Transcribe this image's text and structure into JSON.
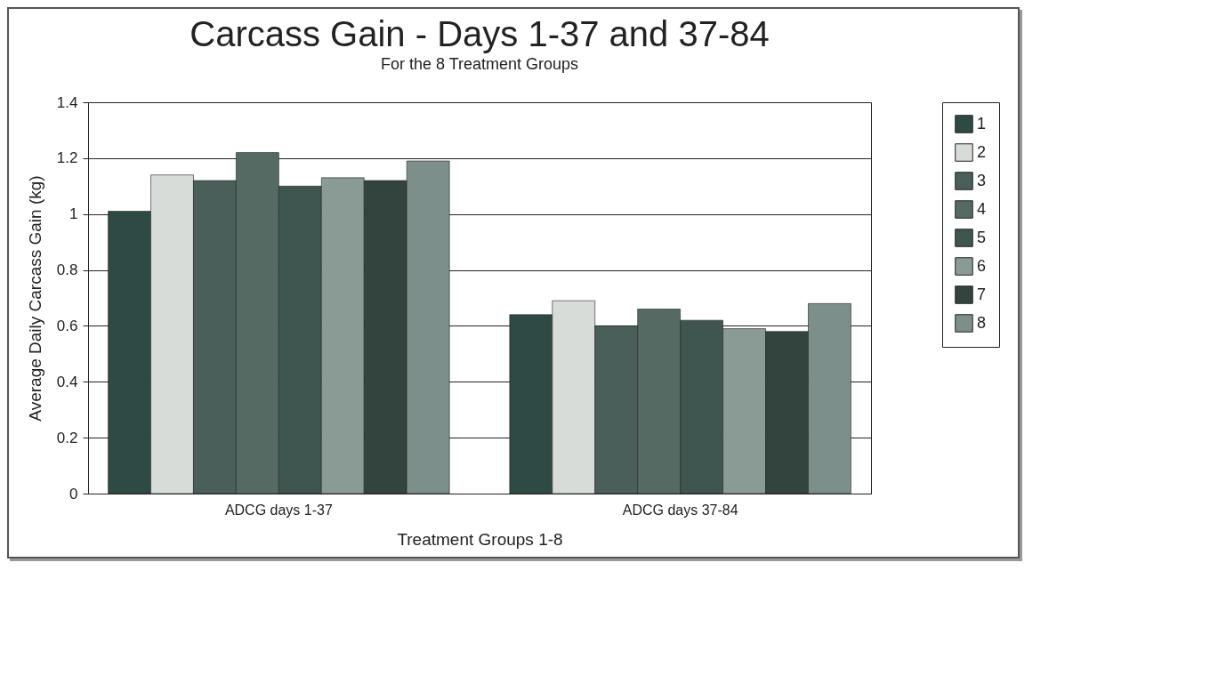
{
  "chart_data": {
    "type": "bar",
    "title": "Carcass Gain - Days 1-37 and 37-84",
    "subtitle": "For the 8 Treatment Groups",
    "xlabel": "Treatment Groups 1-8",
    "ylabel": "Average Daily Carcass Gain (kg)",
    "categories": [
      "ADCG days 1-37",
      "ADCG days 37-84"
    ],
    "series": [
      {
        "name": "1",
        "color": "#2f4a44",
        "values": [
          1.01,
          0.64
        ]
      },
      {
        "name": "2",
        "color": "#d8dcd8",
        "values": [
          1.14,
          0.69
        ]
      },
      {
        "name": "3",
        "color": "#4a5f5a",
        "values": [
          1.12,
          0.6
        ]
      },
      {
        "name": "4",
        "color": "#566a64",
        "values": [
          1.22,
          0.66
        ]
      },
      {
        "name": "5",
        "color": "#3f5550",
        "values": [
          1.1,
          0.62
        ]
      },
      {
        "name": "6",
        "color": "#8a9a95",
        "values": [
          1.13,
          0.59
        ]
      },
      {
        "name": "7",
        "color": "#33443f",
        "values": [
          1.12,
          0.58
        ]
      },
      {
        "name": "8",
        "color": "#7d8f8a",
        "values": [
          1.19,
          0.68
        ]
      }
    ],
    "ylim": [
      0,
      1.4
    ],
    "yticks": [
      0,
      0.2,
      0.4,
      0.6,
      0.8,
      1,
      1.2,
      1.4
    ],
    "grid": "y",
    "legend": "right"
  }
}
